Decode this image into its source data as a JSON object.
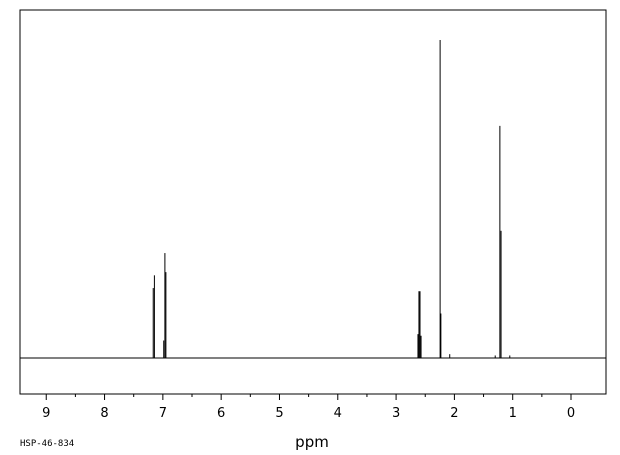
{
  "chart_data": {
    "type": "line",
    "xlabel": "ppm",
    "ylabel": "",
    "xlim": [
      9.45,
      -0.6
    ],
    "x_reversed": true,
    "ylim": [
      0,
      1.0
    ],
    "grid": false,
    "ticks": [
      {
        "value": 9,
        "label": "9"
      },
      {
        "value": 8,
        "label": "8"
      },
      {
        "value": 7,
        "label": "7"
      },
      {
        "value": 6,
        "label": "6"
      },
      {
        "value": 5,
        "label": "5"
      },
      {
        "value": 4,
        "label": "4"
      },
      {
        "value": 3,
        "label": "3"
      },
      {
        "value": 2,
        "label": "2"
      },
      {
        "value": 1,
        "label": "1"
      },
      {
        "value": 0,
        "label": "0"
      }
    ],
    "peaks": [
      {
        "ppm": 7.165,
        "height": 0.22
      },
      {
        "ppm": 7.145,
        "height": 0.26
      },
      {
        "ppm": 6.985,
        "height": 0.055
      },
      {
        "ppm": 6.965,
        "height": 0.33
      },
      {
        "ppm": 6.948,
        "height": 0.27
      },
      {
        "ppm": 2.625,
        "height": 0.075
      },
      {
        "ppm": 2.608,
        "height": 0.21
      },
      {
        "ppm": 2.59,
        "height": 0.21
      },
      {
        "ppm": 2.572,
        "height": 0.07
      },
      {
        "ppm": 2.245,
        "height": 1.0
      },
      {
        "ppm": 2.232,
        "height": 0.14
      },
      {
        "ppm": 2.08,
        "height": 0.012
      },
      {
        "ppm": 1.3,
        "height": 0.008
      },
      {
        "ppm": 1.22,
        "height": 0.73
      },
      {
        "ppm": 1.2,
        "height": 0.4
      },
      {
        "ppm": 1.05,
        "height": 0.008
      }
    ]
  },
  "footer": {
    "sample_code": "HSP-46-834"
  }
}
